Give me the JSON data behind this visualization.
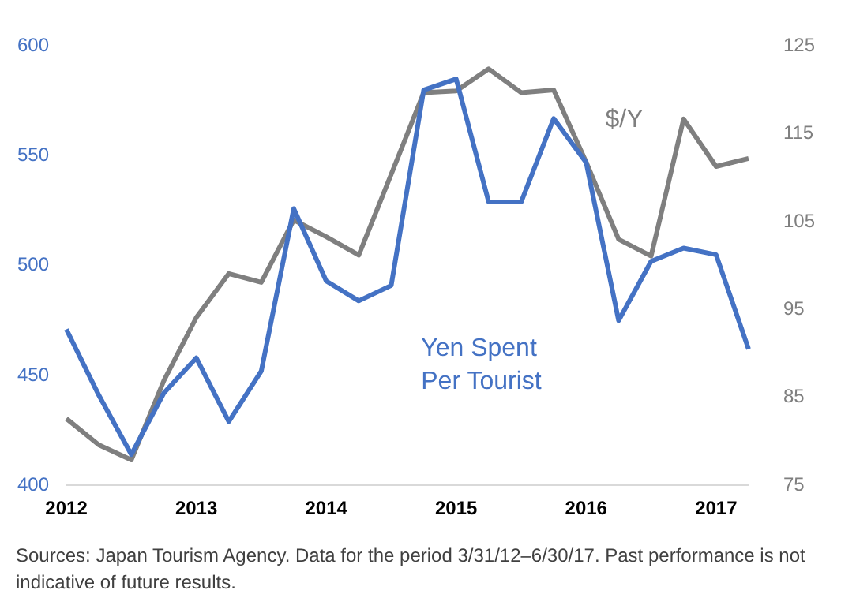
{
  "chart_data": {
    "type": "line",
    "categories": [
      "2012",
      null,
      null,
      null,
      "2013",
      null,
      null,
      null,
      "2014",
      null,
      null,
      null,
      "2015",
      null,
      null,
      null,
      "2016",
      null,
      null,
      null,
      "2017",
      null
    ],
    "series": [
      {
        "name": "Yen Spent Per Tourist",
        "color": "#4472c4",
        "values": [
          471,
          441,
          414,
          442,
          458,
          429,
          452,
          526,
          493,
          484,
          491,
          580,
          585,
          529,
          529,
          567,
          547,
          475,
          502,
          508,
          505,
          462
        ]
      },
      {
        "name": "$/Y",
        "color": "#7f7f7f",
        "axis": "y2",
        "values": [
          82.6,
          79.6,
          77.9,
          86.9,
          94.1,
          99.1,
          98.1,
          105.2,
          103.3,
          101.2,
          110.4,
          119.7,
          119.9,
          122.4,
          119.7,
          120,
          111.8,
          103,
          101.1,
          116.7,
          111.3,
          112.2
        ]
      }
    ],
    "ylim": [
      400,
      600
    ],
    "yticks": [
      400,
      450,
      500,
      550,
      600
    ],
    "y2lim": [
      75,
      125
    ],
    "y2ticks": [
      75,
      85,
      95,
      105,
      115,
      125
    ],
    "grid": false,
    "legend": false,
    "marker": "none",
    "line_style": "solid",
    "annotations": [
      "Sources: Japan Tourism Agency. Data for the period 3/31/12–6/30/17. Past performance is not indicative of future results."
    ]
  }
}
